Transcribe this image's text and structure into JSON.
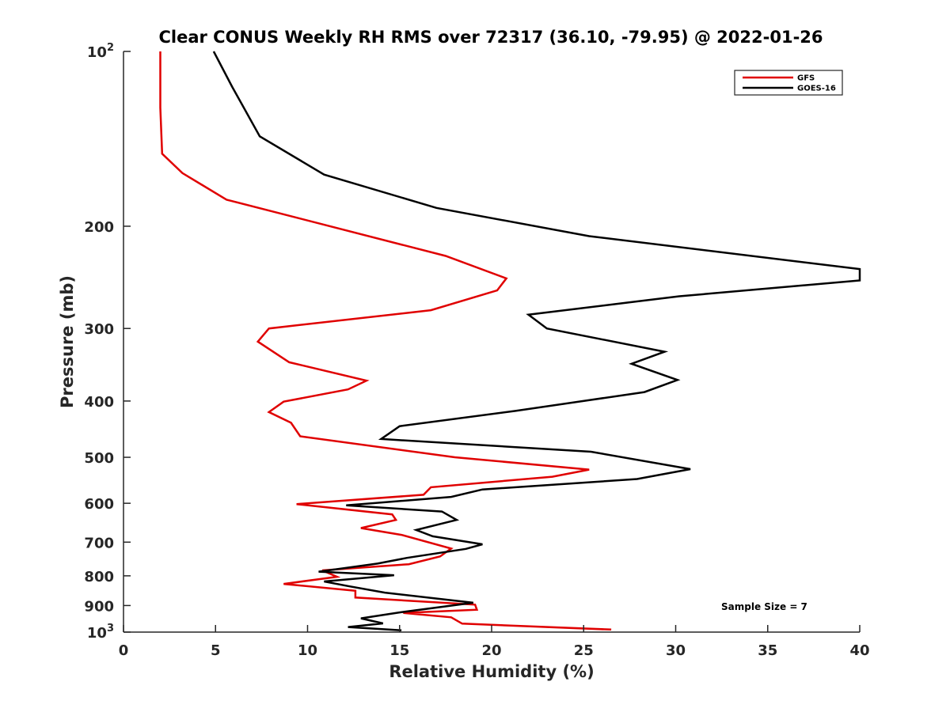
{
  "chart_data": {
    "type": "line",
    "title": "Clear CONUS Weekly RH RMS over 72317 (36.10, -79.95) @ 2022-01-26",
    "xlabel": "Relative Humidity (%)",
    "ylabel": "Pressure (mb)",
    "xlim": [
      0,
      40
    ],
    "ylim": [
      100,
      1000
    ],
    "yscale": "log",
    "y_reversed": true,
    "x_ticks": [
      "0",
      "5",
      "10",
      "15",
      "20",
      "25",
      "30",
      "35",
      "40"
    ],
    "y_ticks": [
      {
        "value": 100,
        "label": "10",
        "sup": "2"
      },
      {
        "value": 200,
        "label": "200"
      },
      {
        "value": 300,
        "label": "300"
      },
      {
        "value": 400,
        "label": "400"
      },
      {
        "value": 500,
        "label": "500"
      },
      {
        "value": 600,
        "label": "600"
      },
      {
        "value": 700,
        "label": "700"
      },
      {
        "value": 800,
        "label": "800"
      },
      {
        "value": 900,
        "label": "900"
      },
      {
        "value": 1000,
        "label": "10",
        "sup": "3"
      }
    ],
    "legend_position": "top-right",
    "grid": false,
    "annotation": "Sample Size = 7",
    "series": [
      {
        "name": "GFS",
        "color": "#e00000",
        "points": [
          [
            2.0,
            100
          ],
          [
            2.0,
            125
          ],
          [
            2.1,
            150
          ],
          [
            3.2,
            162
          ],
          [
            5.6,
            180
          ],
          [
            17.5,
            225
          ],
          [
            20.8,
            246
          ],
          [
            20.3,
            258
          ],
          [
            16.7,
            279
          ],
          [
            7.9,
            300
          ],
          [
            7.3,
            316
          ],
          [
            9.0,
            343
          ],
          [
            13.2,
            369
          ],
          [
            12.2,
            382
          ],
          [
            8.7,
            401
          ],
          [
            7.9,
            418
          ],
          [
            9.1,
            436
          ],
          [
            9.6,
            460
          ],
          [
            18.0,
            500
          ],
          [
            25.3,
            525
          ],
          [
            23.3,
            540
          ],
          [
            16.7,
            563
          ],
          [
            16.3,
            580
          ],
          [
            9.4,
            602
          ],
          [
            14.6,
            627
          ],
          [
            14.8,
            641
          ],
          [
            12.9,
            662
          ],
          [
            15.1,
            680
          ],
          [
            17.8,
            718
          ],
          [
            17.2,
            741
          ],
          [
            15.5,
            764
          ],
          [
            10.8,
            783
          ],
          [
            11.6,
            803
          ],
          [
            8.7,
            826
          ],
          [
            12.6,
            849
          ],
          [
            12.6,
            872
          ],
          [
            19.1,
            897
          ],
          [
            19.2,
            915
          ],
          [
            15.2,
            927
          ],
          [
            17.8,
            943
          ],
          [
            18.4,
            967
          ],
          [
            26.5,
            990
          ]
        ]
      },
      {
        "name": "GOES-16",
        "color": "#000000",
        "points": [
          [
            4.9,
            100
          ],
          [
            5.9,
            115
          ],
          [
            7.4,
            140
          ],
          [
            10.9,
            163
          ],
          [
            17.0,
            186
          ],
          [
            25.3,
            208
          ],
          [
            40.0,
            237
          ],
          [
            40.0,
            248
          ],
          [
            30.2,
            264
          ],
          [
            22.0,
            284
          ],
          [
            23.0,
            300
          ],
          [
            29.4,
            329
          ],
          [
            27.6,
            345
          ],
          [
            30.1,
            368
          ],
          [
            28.3,
            386
          ],
          [
            21.3,
            416
          ],
          [
            15.0,
            442
          ],
          [
            14.0,
            465
          ],
          [
            25.4,
            489
          ],
          [
            30.8,
            524
          ],
          [
            27.9,
            545
          ],
          [
            19.5,
            568
          ],
          [
            17.8,
            585
          ],
          [
            12.1,
            605
          ],
          [
            17.3,
            620
          ],
          [
            18.1,
            641
          ],
          [
            15.9,
            667
          ],
          [
            16.8,
            684
          ],
          [
            19.5,
            706
          ],
          [
            18.6,
            719
          ],
          [
            15.4,
            745
          ],
          [
            13.8,
            762
          ],
          [
            10.6,
            787
          ],
          [
            14.7,
            798
          ],
          [
            10.9,
            818
          ],
          [
            12.2,
            833
          ],
          [
            14.2,
            855
          ],
          [
            19.0,
            890
          ],
          [
            15.0,
            925
          ],
          [
            12.9,
            947
          ],
          [
            14.1,
            966
          ],
          [
            12.2,
            980
          ],
          [
            15.1,
            993
          ]
        ]
      }
    ]
  }
}
